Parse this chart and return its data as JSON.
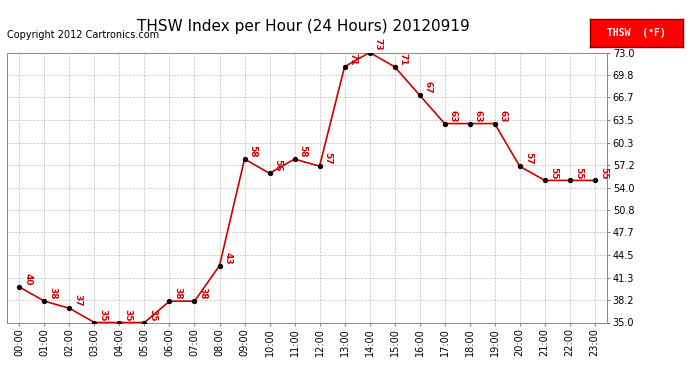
{
  "title": "THSW Index per Hour (24 Hours) 20120919",
  "copyright": "Copyright 2012 Cartronics.com",
  "legend_label": "THSW  (°F)",
  "hours": [
    "00:00",
    "01:00",
    "02:00",
    "03:00",
    "04:00",
    "05:00",
    "06:00",
    "07:00",
    "08:00",
    "09:00",
    "10:00",
    "11:00",
    "12:00",
    "13:00",
    "14:00",
    "15:00",
    "16:00",
    "17:00",
    "18:00",
    "19:00",
    "20:00",
    "21:00",
    "22:00",
    "23:00"
  ],
  "values": [
    40,
    38,
    37,
    35,
    35,
    35,
    38,
    38,
    43,
    58,
    56,
    58,
    57,
    71,
    73,
    71,
    67,
    63,
    63,
    63,
    57,
    55,
    55,
    55
  ],
  "line_color": "#cc0000",
  "marker_color": "#000000",
  "background_color": "#ffffff",
  "grid_color": "#c0c0c0",
  "ylim": [
    35.0,
    73.0
  ],
  "yticks": [
    35.0,
    38.2,
    41.3,
    44.5,
    47.7,
    50.8,
    54.0,
    57.2,
    60.3,
    63.5,
    66.7,
    69.8,
    73.0
  ],
  "title_fontsize": 11,
  "copyright_fontsize": 7,
  "label_fontsize": 6.5,
  "tick_fontsize": 7
}
